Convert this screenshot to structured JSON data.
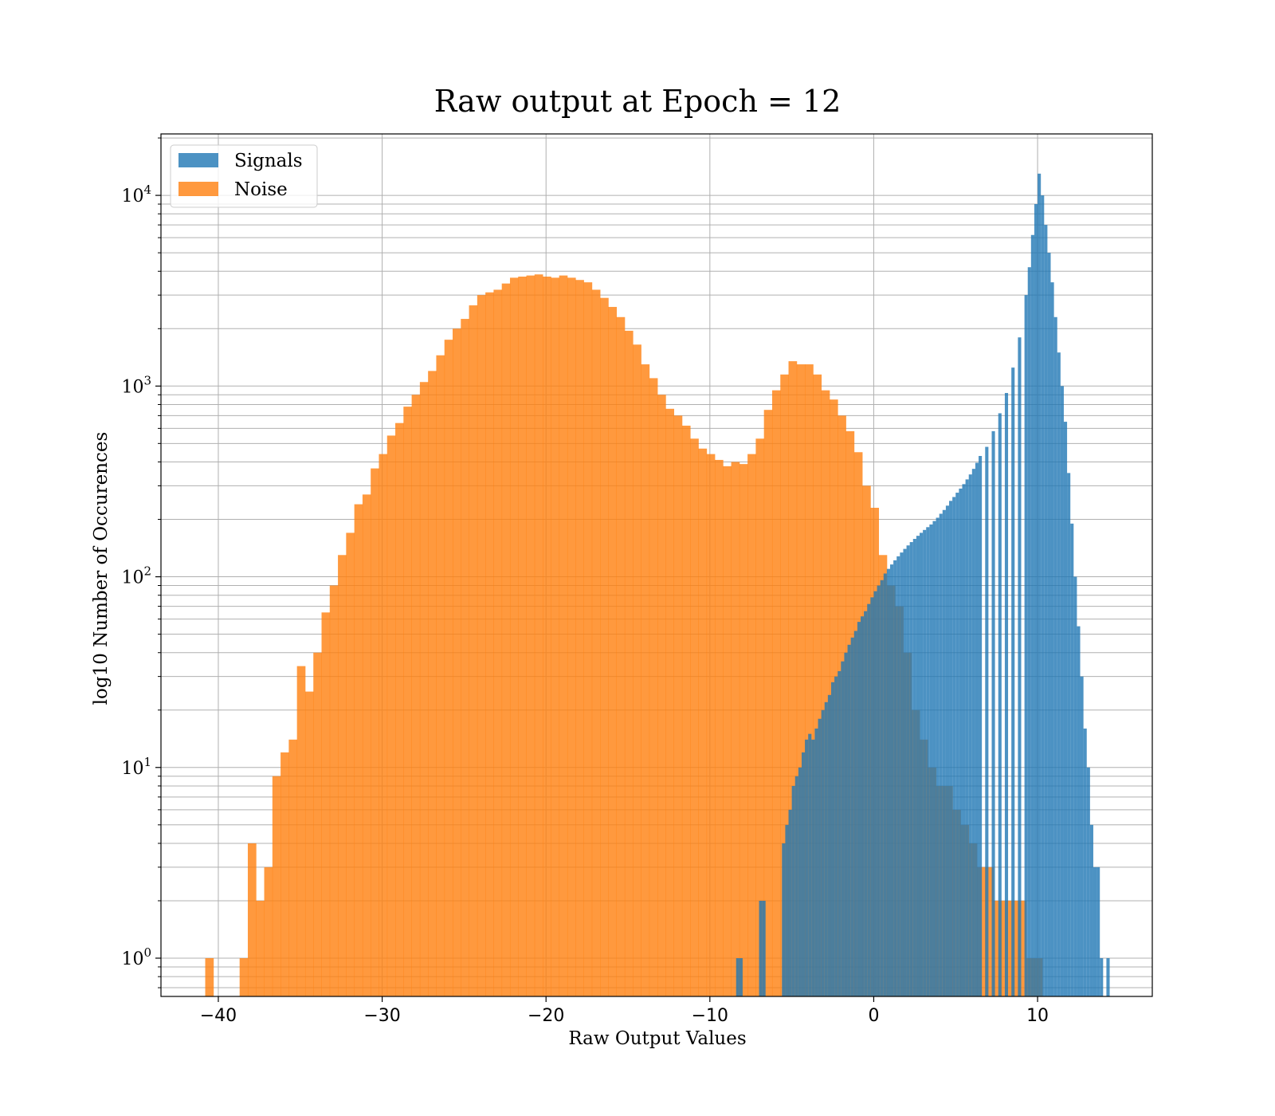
{
  "chart_data": {
    "type": "bar",
    "title": "Raw output at Epoch = 12",
    "xlabel": "Raw Output Values",
    "ylabel": "log10 Number of Occurences",
    "yscale": "log",
    "xlim": [
      -43.5,
      17
    ],
    "ylim": [
      0.63,
      21000
    ],
    "grid": true,
    "legend_position": "top-left",
    "x_ticks": [
      -40,
      -30,
      -20,
      -10,
      0,
      10
    ],
    "x_tick_labels": [
      "−40",
      "−30",
      "−20",
      "−10",
      "0",
      "10"
    ],
    "y_ticks": [
      {
        "value": 1,
        "base": "10",
        "exp": "0"
      },
      {
        "value": 10,
        "base": "10",
        "exp": "1"
      },
      {
        "value": 100,
        "base": "10",
        "exp": "2"
      },
      {
        "value": 1000,
        "base": "10",
        "exp": "3"
      },
      {
        "value": 10000,
        "base": "10",
        "exp": "4"
      }
    ],
    "series": [
      {
        "name": "Noise",
        "color": "#ff7f0e",
        "opacity": 0.8,
        "bin_width": 0.52,
        "bins": [
          [
            -40.8,
            1
          ],
          [
            -38.7,
            1
          ],
          [
            -38.2,
            4
          ],
          [
            -37.7,
            2
          ],
          [
            -37.2,
            3
          ],
          [
            -36.7,
            9
          ],
          [
            -36.2,
            12
          ],
          [
            -35.7,
            14
          ],
          [
            -35.2,
            34
          ],
          [
            -34.7,
            25
          ],
          [
            -34.2,
            40
          ],
          [
            -33.7,
            65
          ],
          [
            -33.2,
            90
          ],
          [
            -32.7,
            130
          ],
          [
            -32.2,
            170
          ],
          [
            -31.7,
            240
          ],
          [
            -31.2,
            270
          ],
          [
            -30.7,
            370
          ],
          [
            -30.2,
            440
          ],
          [
            -29.7,
            550
          ],
          [
            -29.2,
            640
          ],
          [
            -28.7,
            780
          ],
          [
            -28.2,
            900
          ],
          [
            -27.7,
            1050
          ],
          [
            -27.2,
            1200
          ],
          [
            -26.7,
            1450
          ],
          [
            -26.2,
            1750
          ],
          [
            -25.7,
            2000
          ],
          [
            -25.2,
            2250
          ],
          [
            -24.7,
            2650
          ],
          [
            -24.2,
            3000
          ],
          [
            -23.7,
            3100
          ],
          [
            -23.2,
            3200
          ],
          [
            -22.7,
            3450
          ],
          [
            -22.2,
            3700
          ],
          [
            -21.7,
            3750
          ],
          [
            -21.2,
            3800
          ],
          [
            -20.7,
            3850
          ],
          [
            -20.2,
            3750
          ],
          [
            -19.7,
            3700
          ],
          [
            -19.2,
            3800
          ],
          [
            -18.7,
            3700
          ],
          [
            -18.2,
            3600
          ],
          [
            -17.7,
            3500
          ],
          [
            -17.2,
            3200
          ],
          [
            -16.7,
            2900
          ],
          [
            -16.2,
            2600
          ],
          [
            -15.7,
            2300
          ],
          [
            -15.2,
            1950
          ],
          [
            -14.7,
            1650
          ],
          [
            -14.2,
            1300
          ],
          [
            -13.7,
            1100
          ],
          [
            -13.2,
            900
          ],
          [
            -12.7,
            760
          ],
          [
            -12.2,
            700
          ],
          [
            -11.7,
            620
          ],
          [
            -11.2,
            530
          ],
          [
            -10.7,
            470
          ],
          [
            -10.2,
            440
          ],
          [
            -9.7,
            410
          ],
          [
            -9.2,
            380
          ],
          [
            -8.7,
            400
          ],
          [
            -8.2,
            390
          ],
          [
            -7.7,
            440
          ],
          [
            -7.2,
            530
          ],
          [
            -6.7,
            750
          ],
          [
            -6.2,
            950
          ],
          [
            -5.7,
            1150
          ],
          [
            -5.2,
            1350
          ],
          [
            -4.7,
            1300
          ],
          [
            -4.2,
            1300
          ],
          [
            -3.7,
            1150
          ],
          [
            -3.2,
            950
          ],
          [
            -2.7,
            850
          ],
          [
            -2.2,
            700
          ],
          [
            -1.7,
            580
          ],
          [
            -1.2,
            450
          ],
          [
            -0.7,
            300
          ],
          [
            -0.2,
            230
          ],
          [
            0.3,
            130
          ],
          [
            0.8,
            90
          ],
          [
            1.3,
            70
          ],
          [
            1.8,
            40
          ],
          [
            2.3,
            20
          ],
          [
            2.8,
            14
          ],
          [
            3.3,
            10
          ],
          [
            3.8,
            8
          ],
          [
            4.3,
            8
          ],
          [
            4.8,
            6
          ],
          [
            5.3,
            5
          ],
          [
            5.8,
            4
          ],
          [
            6.3,
            3
          ],
          [
            6.8,
            3
          ],
          [
            7.3,
            2
          ],
          [
            7.8,
            2
          ],
          [
            8.3,
            2
          ],
          [
            8.8,
            2
          ],
          [
            9.3,
            1
          ],
          [
            9.8,
            1
          ]
        ]
      },
      {
        "name": "Signals",
        "color": "#1f77b4",
        "opacity": 0.8,
        "bin_width": 0.2,
        "bins": [
          [
            -8.4,
            1
          ],
          [
            -8.2,
            1
          ],
          [
            -7.0,
            2
          ],
          [
            -6.8,
            2
          ],
          [
            -5.6,
            4
          ],
          [
            -5.4,
            5
          ],
          [
            -5.2,
            6
          ],
          [
            -5.0,
            8
          ],
          [
            -4.8,
            9
          ],
          [
            -4.6,
            10
          ],
          [
            -4.4,
            12
          ],
          [
            -4.2,
            14
          ],
          [
            -4.0,
            15
          ],
          [
            -3.8,
            14
          ],
          [
            -3.6,
            16
          ],
          [
            -3.4,
            18
          ],
          [
            -3.2,
            20
          ],
          [
            -3.0,
            22
          ],
          [
            -2.8,
            24
          ],
          [
            -2.6,
            28
          ],
          [
            -2.4,
            30
          ],
          [
            -2.2,
            32
          ],
          [
            -2.0,
            36
          ],
          [
            -1.8,
            40
          ],
          [
            -1.6,
            44
          ],
          [
            -1.4,
            48
          ],
          [
            -1.2,
            52
          ],
          [
            -1.0,
            58
          ],
          [
            -0.8,
            62
          ],
          [
            -0.6,
            66
          ],
          [
            -0.4,
            72
          ],
          [
            -0.2,
            78
          ],
          [
            0.0,
            84
          ],
          [
            0.2,
            90
          ],
          [
            0.4,
            96
          ],
          [
            0.6,
            104
          ],
          [
            0.8,
            110
          ],
          [
            1.0,
            116
          ],
          [
            1.2,
            122
          ],
          [
            1.4,
            128
          ],
          [
            1.6,
            134
          ],
          [
            1.8,
            140
          ],
          [
            2.0,
            146
          ],
          [
            2.2,
            152
          ],
          [
            2.4,
            158
          ],
          [
            2.6,
            164
          ],
          [
            2.8,
            170
          ],
          [
            3.0,
            176
          ],
          [
            3.2,
            182
          ],
          [
            3.4,
            188
          ],
          [
            3.6,
            196
          ],
          [
            3.8,
            204
          ],
          [
            4.0,
            214
          ],
          [
            4.2,
            224
          ],
          [
            4.4,
            236
          ],
          [
            4.6,
            250
          ],
          [
            4.8,
            262
          ],
          [
            5.0,
            276
          ],
          [
            5.2,
            290
          ],
          [
            5.4,
            306
          ],
          [
            5.6,
            324
          ],
          [
            5.8,
            344
          ],
          [
            6.0,
            368
          ],
          [
            6.2,
            396
          ],
          [
            6.4,
            430
          ],
          [
            6.8,
            480
          ],
          [
            7.2,
            580
          ],
          [
            7.6,
            720
          ],
          [
            8.0,
            920
          ],
          [
            8.4,
            1250
          ],
          [
            8.8,
            1800
          ],
          [
            9.2,
            3000
          ],
          [
            9.4,
            4200
          ],
          [
            9.6,
            6200
          ],
          [
            9.8,
            9000
          ],
          [
            10.0,
            13000
          ],
          [
            10.2,
            10000
          ],
          [
            10.4,
            7000
          ],
          [
            10.6,
            5000
          ],
          [
            10.8,
            3500
          ],
          [
            11.0,
            2300
          ],
          [
            11.2,
            1500
          ],
          [
            11.4,
            1000
          ],
          [
            11.6,
            650
          ],
          [
            11.8,
            350
          ],
          [
            12.0,
            190
          ],
          [
            12.2,
            100
          ],
          [
            12.4,
            55
          ],
          [
            12.6,
            30
          ],
          [
            12.8,
            16
          ],
          [
            13.0,
            10
          ],
          [
            13.2,
            5
          ],
          [
            13.4,
            3
          ],
          [
            13.6,
            3
          ],
          [
            13.8,
            1
          ],
          [
            14.2,
            1
          ]
        ]
      }
    ],
    "legend": [
      "Signals",
      "Noise"
    ]
  }
}
